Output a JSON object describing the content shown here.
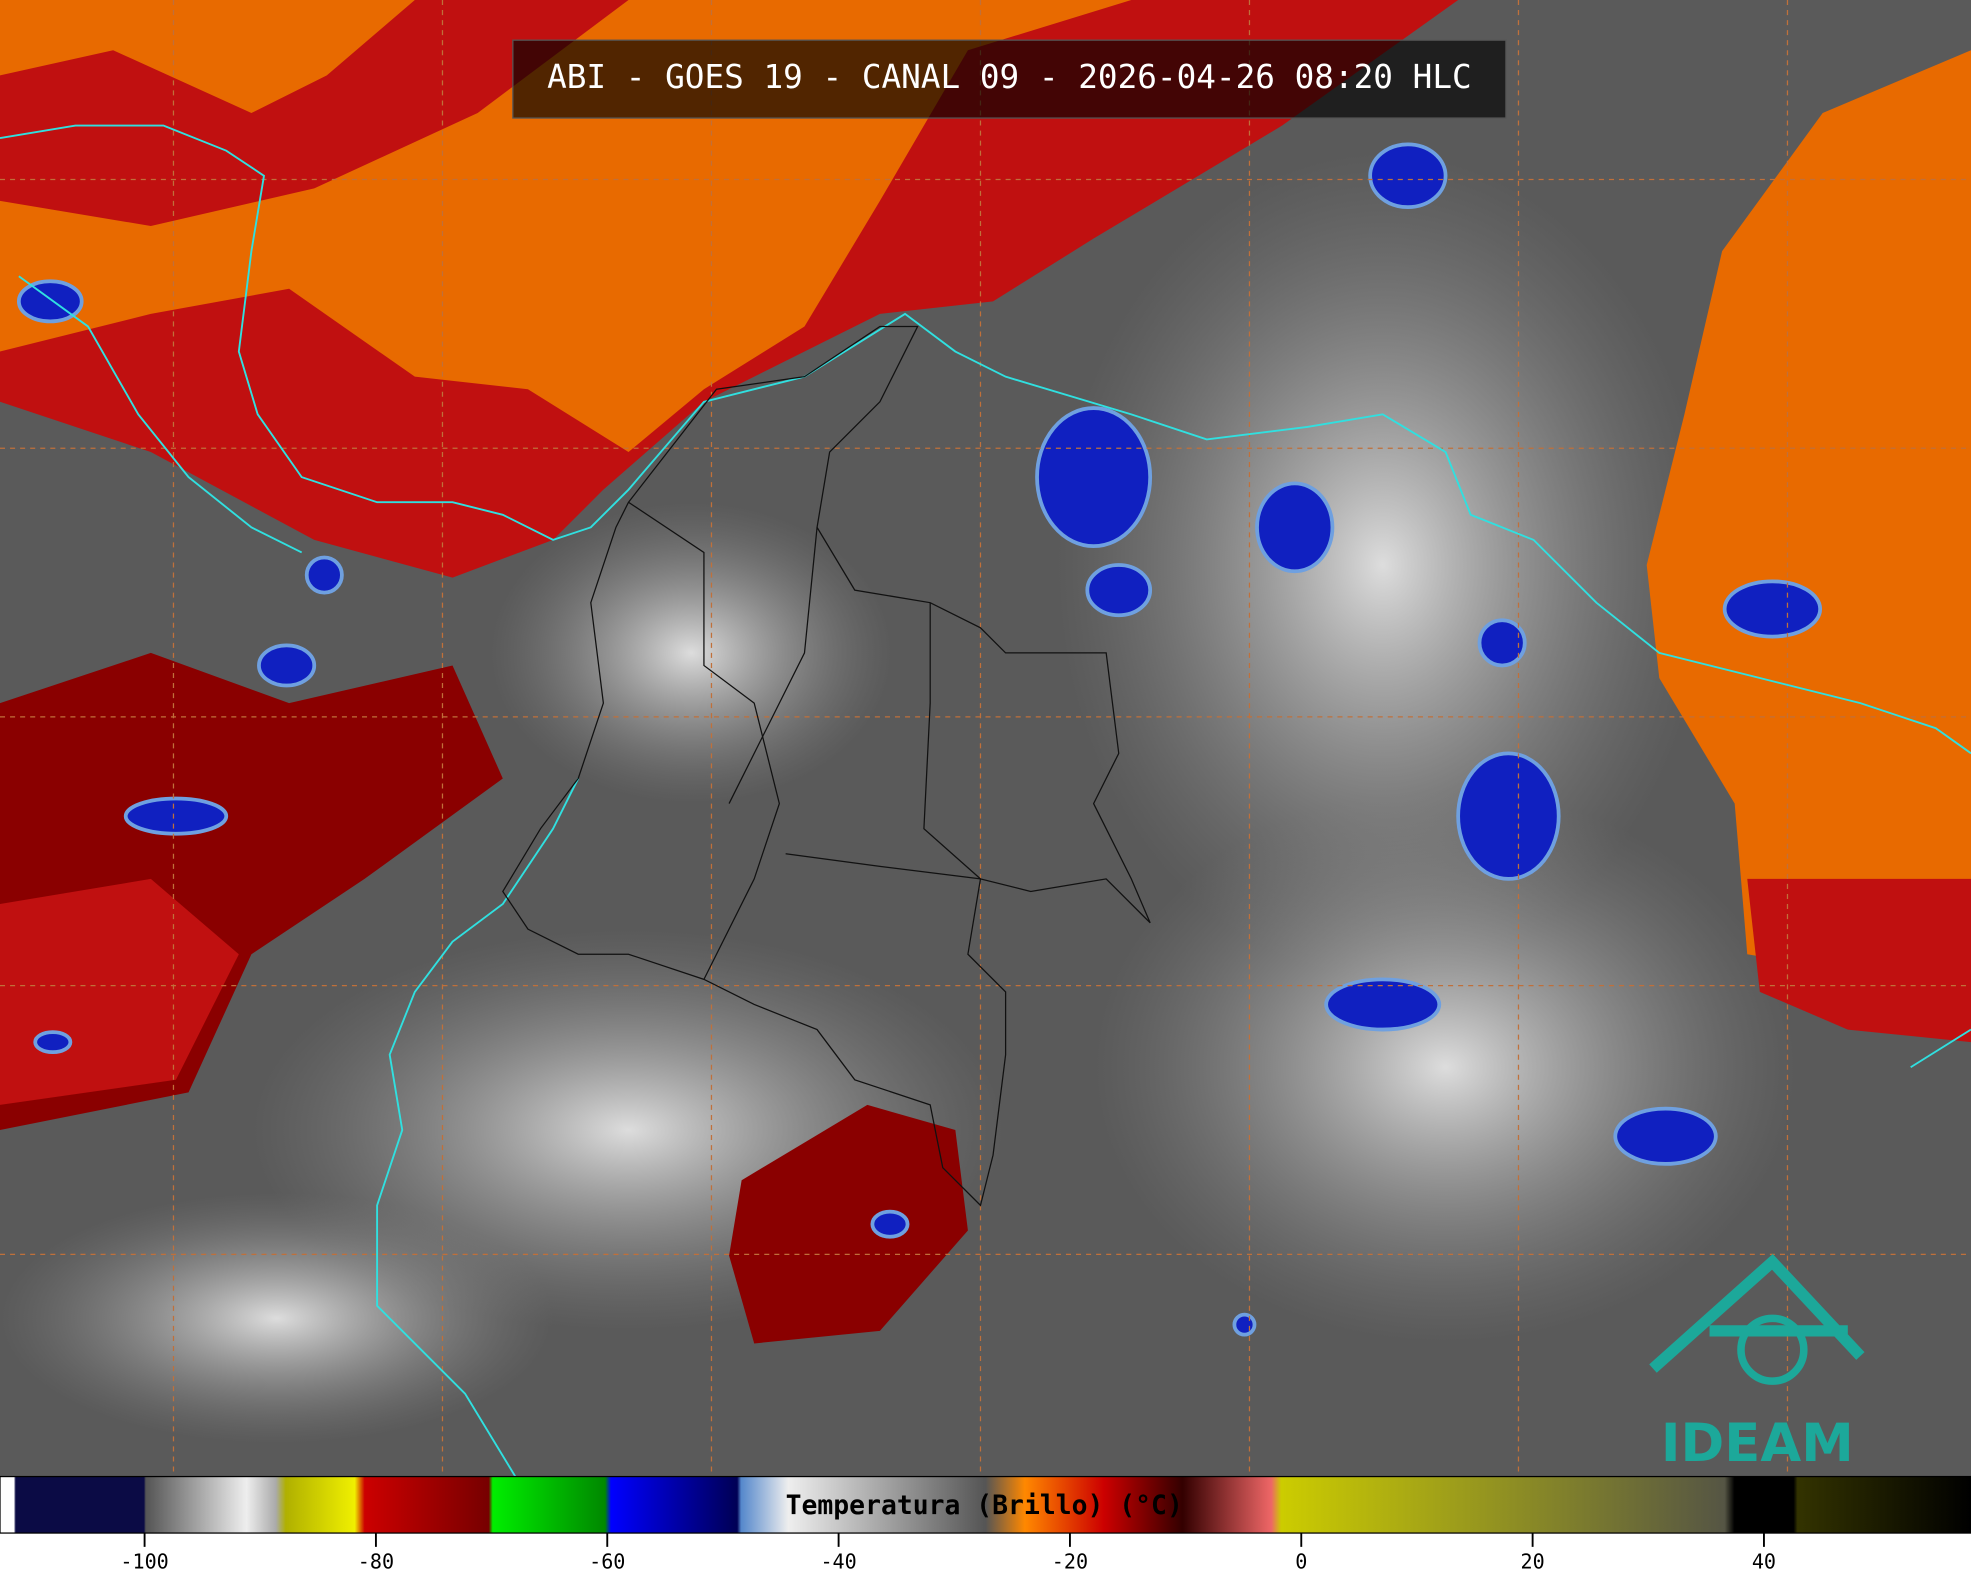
{
  "header": {
    "title": "ABI - GOES 19 - CANAL 09 - 2026-04-26 08:20 HLC"
  },
  "colorbar": {
    "label": "Temperatura (Brillo) (°C)",
    "lim": [
      -112.5,
      57.9
    ],
    "ticks": [
      -100,
      -80,
      -60,
      -40,
      -20,
      0,
      20,
      40
    ]
  },
  "logo": {
    "text": "IDEAM"
  }
}
